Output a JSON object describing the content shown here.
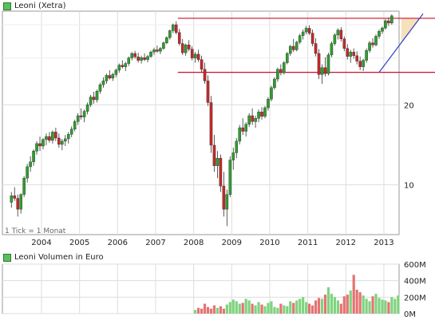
{
  "legend": {
    "price_label": "Leoni (Xetra)",
    "volume_label": "Leoni Volumen in Euro"
  },
  "footnote": "1 Tick = 1 Monat",
  "chart_data": [
    {
      "type": "candlestick",
      "title": "Leoni (Xetra)",
      "scale": "log",
      "x_tick_labels": [
        "2004",
        "2005",
        "2006",
        "2007",
        "2008",
        "2009",
        "2010",
        "2011",
        "2012",
        "2013"
      ],
      "y_tick_labels": [
        "10",
        "20"
      ],
      "ylim": [
        6.5,
        45
      ],
      "grid": true,
      "colors": {
        "up": "#2e9e2e",
        "down": "#c62828",
        "resistance": "#c8102e",
        "trend": "#2a3fc7",
        "fill": "#f5deb3"
      },
      "months_start": "2003-03",
      "ohlc": [
        [
          8.6,
          9.4,
          8.2,
          9.1
        ],
        [
          9.1,
          9.8,
          8.7,
          8.9
        ],
        [
          8.9,
          9.2,
          7.6,
          8.1
        ],
        [
          8.1,
          9.3,
          7.8,
          9.2
        ],
        [
          9.2,
          10.8,
          9.0,
          10.6
        ],
        [
          10.6,
          12.0,
          10.2,
          11.7
        ],
        [
          11.7,
          12.8,
          11.2,
          12.2
        ],
        [
          12.2,
          13.6,
          11.8,
          13.4
        ],
        [
          13.4,
          14.6,
          13.0,
          14.3
        ],
        [
          14.3,
          15.2,
          13.4,
          14.0
        ],
        [
          14.0,
          15.0,
          13.6,
          14.8
        ],
        [
          14.8,
          15.6,
          14.1,
          15.2
        ],
        [
          15.2,
          15.8,
          14.4,
          14.7
        ],
        [
          14.7,
          16.0,
          14.3,
          15.8
        ],
        [
          15.8,
          16.4,
          14.6,
          15.0
        ],
        [
          15.0,
          15.6,
          13.8,
          14.2
        ],
        [
          14.2,
          14.9,
          13.5,
          14.6
        ],
        [
          14.6,
          15.4,
          14.0,
          14.9
        ],
        [
          14.9,
          15.8,
          14.3,
          15.5
        ],
        [
          15.5,
          16.6,
          15.1,
          16.2
        ],
        [
          16.2,
          17.6,
          15.9,
          17.3
        ],
        [
          17.3,
          18.6,
          16.8,
          18.2
        ],
        [
          18.2,
          19.4,
          17.6,
          18.0
        ],
        [
          18.0,
          19.2,
          17.2,
          18.9
        ],
        [
          18.9,
          20.4,
          18.4,
          20.0
        ],
        [
          20.0,
          21.8,
          19.6,
          21.4
        ],
        [
          21.4,
          22.4,
          20.2,
          20.9
        ],
        [
          20.9,
          22.8,
          20.4,
          22.5
        ],
        [
          22.5,
          24.2,
          22.0,
          23.8
        ],
        [
          23.8,
          25.4,
          23.2,
          24.6
        ],
        [
          24.6,
          26.2,
          24.0,
          25.8
        ],
        [
          25.8,
          27.0,
          24.9,
          25.2
        ],
        [
          25.2,
          26.4,
          24.6,
          26.0
        ],
        [
          26.0,
          27.4,
          25.4,
          27.0
        ],
        [
          27.0,
          28.6,
          26.4,
          28.2
        ],
        [
          28.2,
          29.4,
          27.4,
          27.8
        ],
        [
          27.8,
          29.0,
          26.8,
          28.6
        ],
        [
          28.6,
          30.4,
          28.0,
          30.0
        ],
        [
          30.0,
          31.6,
          29.4,
          31.2
        ],
        [
          31.2,
          31.9,
          29.8,
          30.3
        ],
        [
          30.3,
          31.4,
          28.8,
          29.4
        ],
        [
          29.4,
          30.6,
          28.6,
          30.1
        ],
        [
          30.1,
          31.2,
          29.2,
          29.6
        ],
        [
          29.6,
          30.8,
          28.9,
          30.4
        ],
        [
          30.4,
          32.0,
          30.0,
          31.6
        ],
        [
          31.6,
          32.8,
          30.8,
          32.2
        ],
        [
          32.2,
          33.4,
          31.4,
          31.8
        ],
        [
          31.8,
          33.0,
          31.0,
          32.6
        ],
        [
          32.6,
          34.6,
          32.2,
          34.2
        ],
        [
          34.2,
          36.2,
          33.8,
          35.8
        ],
        [
          35.8,
          38.4,
          35.2,
          38.0
        ],
        [
          38.0,
          40.4,
          37.2,
          40.0
        ],
        [
          40.0,
          41.2,
          36.8,
          37.4
        ],
        [
          37.4,
          38.6,
          33.4,
          34.0
        ],
        [
          34.0,
          35.4,
          30.8,
          31.4
        ],
        [
          31.4,
          34.0,
          30.6,
          33.6
        ],
        [
          33.6,
          35.0,
          31.8,
          32.4
        ],
        [
          32.4,
          33.2,
          29.4,
          30.0
        ],
        [
          30.0,
          31.6,
          28.8,
          31.0
        ],
        [
          31.0,
          32.2,
          29.0,
          29.6
        ],
        [
          29.6,
          30.6,
          26.4,
          27.2
        ],
        [
          27.2,
          28.8,
          24.0,
          24.6
        ],
        [
          24.6,
          25.8,
          19.8,
          20.4
        ],
        [
          20.4,
          21.6,
          13.2,
          14.1
        ],
        [
          14.1,
          15.4,
          11.2,
          11.8
        ],
        [
          11.8,
          13.4,
          10.6,
          12.6
        ],
        [
          12.6,
          13.0,
          9.4,
          9.9
        ],
        [
          9.9,
          11.2,
          7.6,
          8.1
        ],
        [
          8.1,
          9.6,
          7.0,
          9.2
        ],
        [
          9.2,
          12.8,
          9.0,
          12.4
        ],
        [
          12.4,
          13.8,
          11.4,
          13.2
        ],
        [
          13.2,
          15.0,
          12.6,
          14.6
        ],
        [
          14.6,
          16.8,
          14.2,
          16.4
        ],
        [
          16.4,
          17.8,
          15.4,
          15.9
        ],
        [
          15.9,
          17.2,
          15.2,
          16.9
        ],
        [
          16.9,
          18.6,
          16.5,
          18.2
        ],
        [
          18.2,
          19.4,
          16.8,
          17.3
        ],
        [
          17.3,
          18.2,
          16.4,
          17.8
        ],
        [
          17.8,
          19.2,
          17.2,
          18.8
        ],
        [
          18.8,
          19.6,
          17.6,
          18.1
        ],
        [
          18.1,
          19.8,
          17.8,
          19.5
        ],
        [
          19.5,
          21.4,
          19.0,
          21.0
        ],
        [
          21.0,
          23.6,
          20.6,
          23.2
        ],
        [
          23.2,
          25.4,
          22.8,
          25.0
        ],
        [
          25.0,
          27.6,
          24.4,
          27.2
        ],
        [
          27.2,
          28.4,
          25.8,
          26.4
        ],
        [
          26.4,
          29.2,
          26.0,
          28.8
        ],
        [
          28.8,
          31.6,
          28.4,
          31.2
        ],
        [
          31.2,
          33.6,
          30.6,
          33.2
        ],
        [
          33.2,
          35.4,
          31.6,
          32.2
        ],
        [
          32.2,
          34.8,
          31.8,
          34.4
        ],
        [
          34.4,
          37.0,
          33.8,
          36.4
        ],
        [
          36.4,
          38.4,
          35.2,
          37.6
        ],
        [
          37.6,
          39.6,
          36.8,
          38.8
        ],
        [
          38.8,
          39.8,
          36.6,
          37.2
        ],
        [
          37.2,
          38.4,
          33.2,
          34.0
        ],
        [
          34.0,
          35.6,
          30.4,
          31.2
        ],
        [
          31.2,
          32.4,
          25.0,
          26.0
        ],
        [
          26.0,
          28.4,
          24.0,
          27.6
        ],
        [
          27.6,
          30.2,
          25.6,
          26.2
        ],
        [
          26.2,
          31.4,
          25.8,
          30.8
        ],
        [
          30.8,
          34.6,
          30.2,
          34.0
        ],
        [
          34.0,
          37.2,
          33.4,
          36.6
        ],
        [
          36.6,
          38.8,
          35.2,
          38.2
        ],
        [
          38.2,
          39.2,
          34.6,
          35.4
        ],
        [
          35.4,
          36.2,
          31.8,
          32.6
        ],
        [
          32.6,
          33.8,
          29.6,
          30.4
        ],
        [
          30.4,
          32.2,
          28.8,
          31.6
        ],
        [
          31.6,
          32.6,
          29.8,
          30.6
        ],
        [
          30.6,
          31.8,
          28.4,
          29.2
        ],
        [
          29.2,
          30.4,
          27.0,
          27.8
        ],
        [
          27.8,
          29.8,
          26.8,
          29.4
        ],
        [
          29.4,
          32.6,
          28.8,
          32.0
        ],
        [
          32.0,
          34.8,
          31.4,
          34.2
        ],
        [
          34.2,
          35.6,
          32.8,
          33.6
        ],
        [
          33.6,
          36.8,
          33.2,
          36.2
        ],
        [
          36.2,
          38.4,
          35.4,
          37.8
        ],
        [
          37.8,
          39.4,
          37.0,
          38.9
        ],
        [
          38.9,
          42.0,
          38.4,
          41.4
        ],
        [
          41.4,
          42.6,
          39.6,
          40.6
        ],
        [
          40.6,
          43.8,
          40.0,
          43.2
        ]
      ],
      "resistance": [
        42.3,
        26.5
      ],
      "trendline": {
        "start": [
          "2012-11",
          26.5
        ],
        "end": [
          "2013-08",
          44.0
        ]
      }
    },
    {
      "type": "bar",
      "title": "Leoni Volumen in Euro",
      "y_tick_labels": [
        "0M",
        "200M",
        "400M",
        "600M"
      ],
      "ylim": [
        0,
        600
      ],
      "values": [
        0,
        0,
        0,
        0,
        0,
        0,
        0,
        0,
        0,
        0,
        0,
        0,
        0,
        0,
        0,
        0,
        0,
        0,
        0,
        0,
        0,
        0,
        0,
        0,
        0,
        0,
        0,
        0,
        0,
        0,
        0,
        0,
        0,
        0,
        0,
        0,
        0,
        0,
        0,
        0,
        0,
        0,
        0,
        0,
        0,
        0,
        0,
        0,
        0,
        0,
        0,
        0,
        0,
        0,
        0,
        0,
        0,
        0,
        0,
        0,
        45,
        70,
        60,
        120,
        80,
        60,
        100,
        70,
        90,
        60,
        110,
        140,
        170,
        150,
        120,
        130,
        180,
        160,
        120,
        100,
        140,
        110,
        90,
        130,
        150,
        80,
        70,
        120,
        100,
        90,
        150,
        130,
        160,
        180,
        200,
        140,
        120,
        100,
        160,
        190,
        180,
        230,
        320,
        240,
        200,
        160,
        120,
        210,
        230,
        280,
        470,
        290,
        260,
        220,
        180,
        150,
        210,
        240,
        190,
        170,
        160,
        140,
        200,
        180,
        220
      ],
      "volume_start": "2008-01"
    }
  ]
}
